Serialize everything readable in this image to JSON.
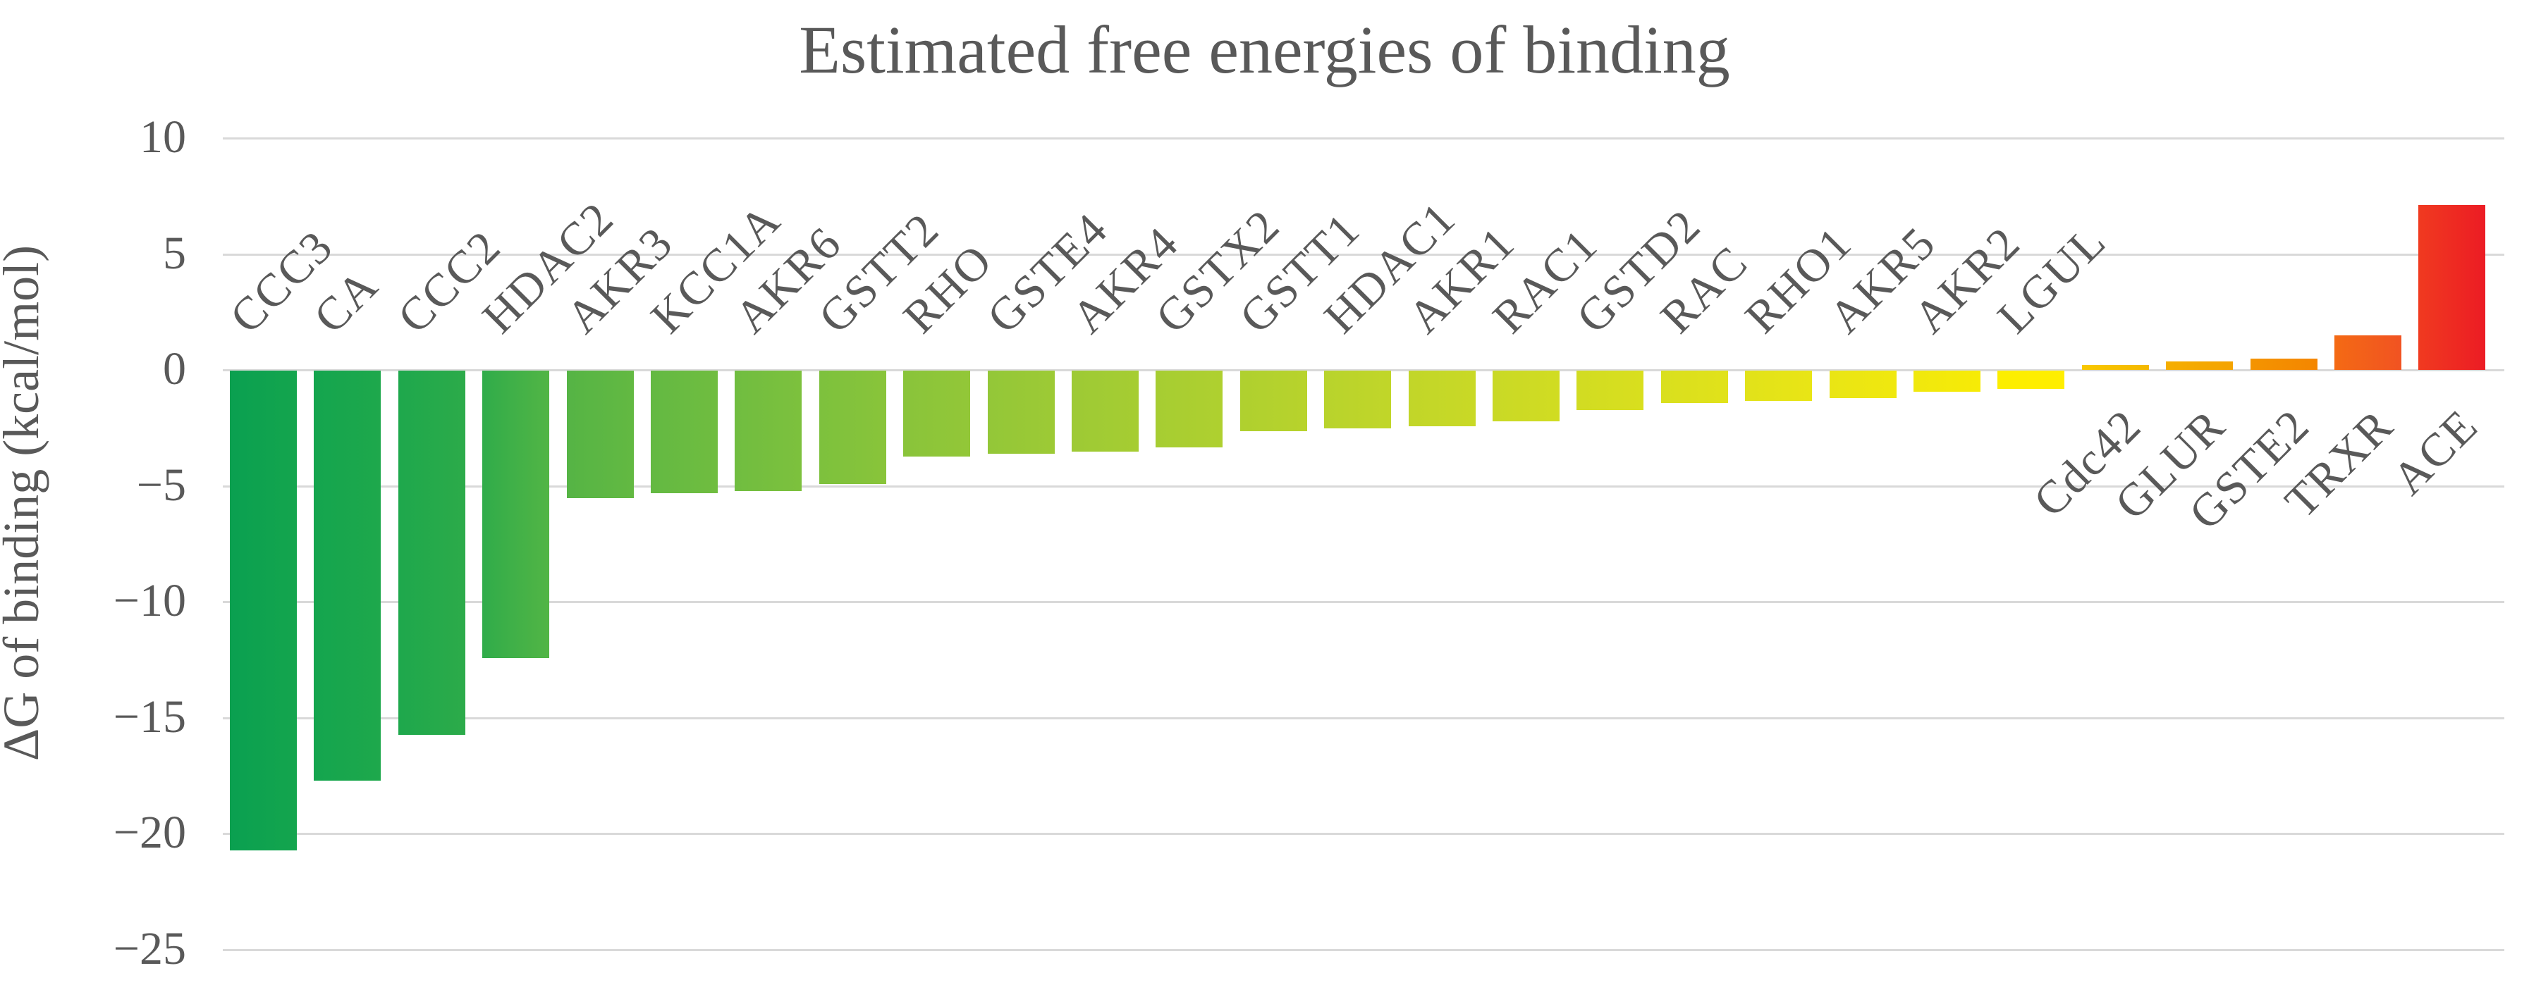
{
  "title": "Estimated free energies of binding",
  "y_axis": {
    "label": "ΔG of binding (kcal/mol)",
    "ticks": [
      10,
      5,
      0,
      -5,
      -10,
      -15,
      -20,
      -25
    ]
  },
  "colors": {
    "text": "#595959",
    "gridline": "#d9d9d9"
  },
  "chart_data": {
    "type": "bar",
    "title": "Estimated free energies of binding",
    "xlabel": "",
    "ylabel": "ΔG of binding (kcal/mol)",
    "ylim": [
      -25,
      10
    ],
    "grid": "horizontal",
    "legend": "none",
    "categories": [
      "CCC3",
      "CA",
      "CCC2",
      "HDAC2",
      "AKR3",
      "KCC1A",
      "AKR6",
      "GSTT2",
      "RHO",
      "GSTE4",
      "AKR4",
      "GSTX2",
      "GSTT1",
      "HDAC1",
      "AKR1",
      "RAC1",
      "GSTD2",
      "RAC",
      "RHO1",
      "AKR5",
      "AKR2",
      "LGUL",
      "Cdc42",
      "GLUR",
      "GSTE2",
      "TRXR",
      "ACE"
    ],
    "values": [
      -20.7,
      -17.7,
      -15.7,
      -12.4,
      -5.5,
      -5.3,
      -5.2,
      -4.9,
      -3.7,
      -3.6,
      -3.5,
      -3.3,
      -2.6,
      -2.5,
      -2.4,
      -2.2,
      -1.7,
      -1.4,
      -1.3,
      -1.2,
      -0.9,
      -0.8,
      0.2,
      0.35,
      0.5,
      1.5,
      7.1
    ],
    "bar_colors": [
      [
        "#0aa050",
        "#14a54e"
      ],
      [
        "#14a54e",
        "#1ea84c"
      ],
      [
        "#1ea84c",
        "#2cab4a"
      ],
      [
        "#30ac4a",
        "#52b545"
      ],
      [
        "#55b445",
        "#63b942"
      ],
      [
        "#63b942",
        "#70bd40"
      ],
      [
        "#70bd40",
        "#7dc13d"
      ],
      [
        "#7dc13d",
        "#89c43a"
      ],
      [
        "#89c43a",
        "#93c738"
      ],
      [
        "#93c738",
        "#9dca35"
      ],
      [
        "#9dca35",
        "#a6cd32"
      ],
      [
        "#a6cd32",
        "#afd02f"
      ],
      [
        "#afd02f",
        "#b8d32c"
      ],
      [
        "#b8d32c",
        "#c1d629"
      ],
      [
        "#c1d629",
        "#c9d926"
      ],
      [
        "#c9d926",
        "#d1dc22"
      ],
      [
        "#d1dc22",
        "#d9df1e"
      ],
      [
        "#d9df1e",
        "#e1e21a"
      ],
      [
        "#e1e21a",
        "#e9e515"
      ],
      [
        "#e9e515",
        "#f0e80e"
      ],
      [
        "#f0e80e",
        "#f7eb06"
      ],
      [
        "#fcee00",
        "#ffee00"
      ],
      [
        "#f8c800",
        "#f4b800"
      ],
      [
        "#f5ae00",
        "#f4a300"
      ],
      [
        "#f49400",
        "#f48600"
      ],
      [
        "#f46a14",
        "#f15322"
      ],
      [
        "#f03a20",
        "#ec1c24"
      ]
    ]
  }
}
